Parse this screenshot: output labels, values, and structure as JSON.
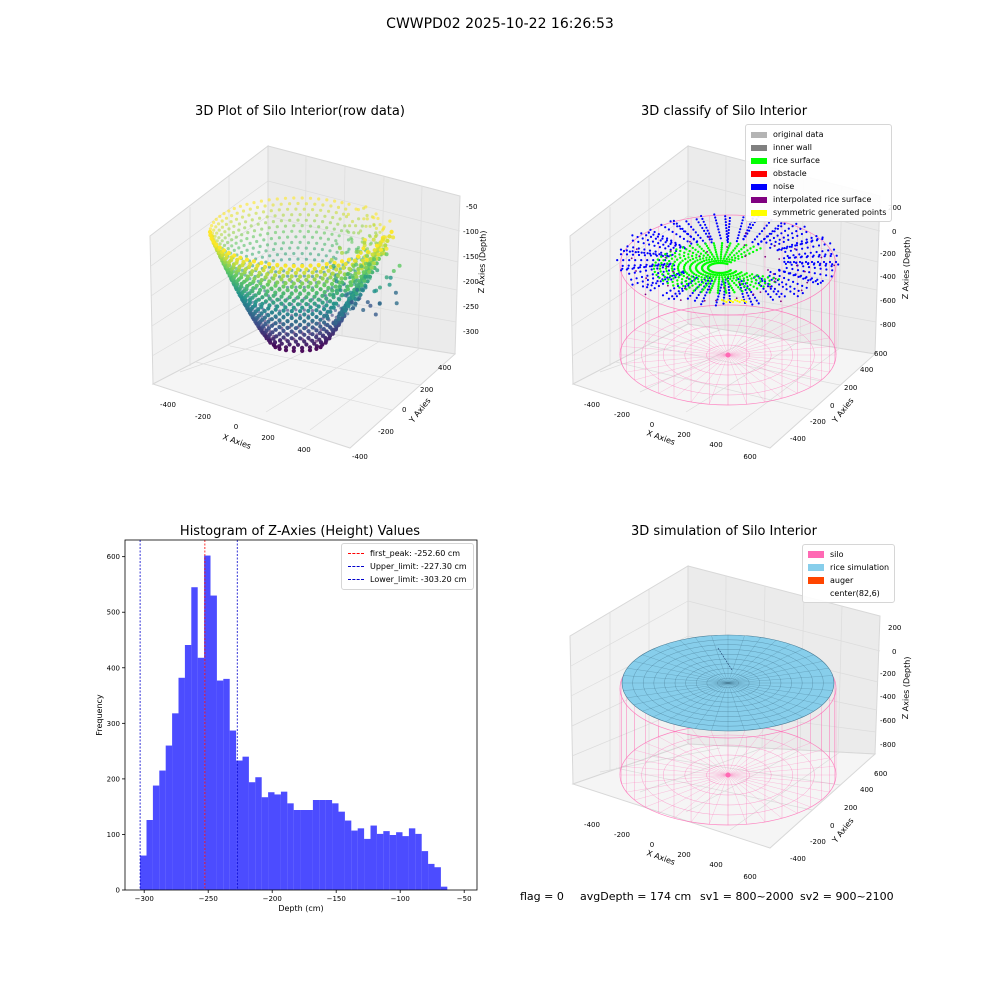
{
  "suptitle": "CWWPD02 2025-10-22 16:26:53",
  "chart_data": [
    {
      "type": "scatter",
      "subtype": "3d-scatter",
      "title": "3D Plot of Silo Interior(row data)",
      "xlabel": "X Axies",
      "ylabel": "Y Axies",
      "zlabel": "Z Axies (Depth)",
      "x_ticks": [
        -400,
        -200,
        0,
        200,
        400
      ],
      "y_ticks": [
        -400,
        -200,
        0,
        200,
        400
      ],
      "z_ticks": [
        -50,
        -100,
        -150,
        -200,
        -250,
        -300
      ],
      "zlim": [
        -303,
        -50
      ],
      "colormap": "viridis"
    },
    {
      "type": "scatter",
      "subtype": "3d-scatter",
      "title": "3D classify of Silo Interior",
      "xlabel": "X Axies",
      "ylabel": "Y Axies",
      "zlabel": "Z Axies (Depth)",
      "x_ticks": [
        -400,
        -200,
        0,
        200,
        400,
        600
      ],
      "y_ticks": [
        -400,
        -200,
        0,
        200,
        400,
        600
      ],
      "z_ticks": [
        200,
        0,
        -200,
        -400,
        -600,
        -800
      ],
      "legend_position": "top-right",
      "legend": [
        {
          "label": "original data",
          "color": "#b4b4b4"
        },
        {
          "label": "inner wall",
          "color": "#808080"
        },
        {
          "label": "rice surface",
          "color": "#00ff00"
        },
        {
          "label": "obstacle",
          "color": "#ff0000"
        },
        {
          "label": "noise",
          "color": "#0000ff"
        },
        {
          "label": "interpolated rice surface",
          "color": "#800080"
        },
        {
          "label": "symmetric generated points",
          "color": "#ffff00"
        }
      ]
    },
    {
      "type": "bar",
      "subtype": "histogram",
      "title": "Histogram of Z-Axies (Height) Values",
      "xlabel": "Depth (cm)",
      "ylabel": "Frequency",
      "xlim": [
        -315,
        -40
      ],
      "ylim": [
        0,
        630
      ],
      "x_ticks": [
        -300,
        -250,
        -200,
        -150,
        -100,
        -50
      ],
      "y_ticks": [
        0,
        100,
        200,
        300,
        400,
        500,
        600
      ],
      "bin_start": -303.2,
      "bin_width": 5.0,
      "values": [
        62,
        126,
        188,
        215,
        260,
        318,
        382,
        441,
        545,
        418,
        602,
        530,
        377,
        380,
        287,
        233,
        240,
        194,
        203,
        167,
        176,
        172,
        177,
        156,
        144,
        144,
        144,
        162,
        162,
        162,
        156,
        141,
        125,
        107,
        111,
        92,
        116,
        101,
        106,
        99,
        104,
        97,
        111,
        101,
        70,
        47,
        41,
        6
      ],
      "bar_color": "#0000ff",
      "legend_position": "top-right",
      "lines": [
        {
          "label": "first_peak: -252.60 cm",
          "x": -252.6,
          "color": "#ff0000"
        },
        {
          "label": "Upper_limit: -227.30 cm",
          "x": -227.3,
          "color": "#0000cc"
        },
        {
          "label": "Lower_limit: -303.20 cm",
          "x": -303.2,
          "color": "#0000cc"
        }
      ]
    },
    {
      "type": "scatter",
      "subtype": "3d-surface",
      "title": "3D simulation of Silo Interior",
      "xlabel": "X Axies",
      "ylabel": "Y Axies",
      "zlabel": "Z Axies (Depth)",
      "x_ticks": [
        -400,
        -200,
        0,
        200,
        400,
        600
      ],
      "y_ticks": [
        -400,
        -200,
        0,
        200,
        400,
        600
      ],
      "z_ticks": [
        200,
        0,
        -200,
        -400,
        -600,
        -800
      ],
      "legend_position": "top-right",
      "legend": [
        {
          "label": "silo",
          "color": "#ff69b4"
        },
        {
          "label": "rice simulation",
          "color": "#87ceeb"
        },
        {
          "label": "auger",
          "color": "#ff4500"
        },
        {
          "label": "center(82,6)",
          "color": ""
        }
      ]
    }
  ],
  "status": {
    "flag": "flag = 0",
    "avg_depth": "avgDepth = 174 cm",
    "sv1": "sv1 = 800~2000",
    "sv2": "sv2 = 900~2100"
  }
}
